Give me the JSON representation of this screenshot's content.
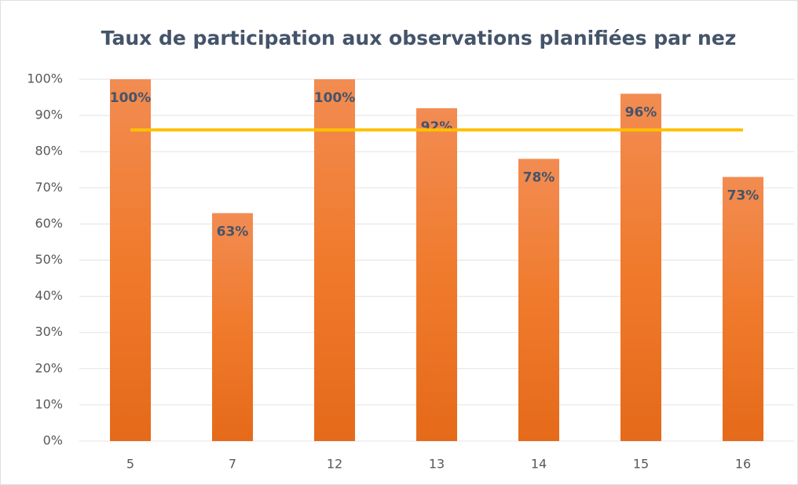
{
  "chart_data": {
    "type": "bar",
    "title": "Taux de participation aux observations planifiées par nez",
    "categories": [
      "5",
      "7",
      "12",
      "13",
      "14",
      "15",
      "16"
    ],
    "values": [
      100,
      63,
      100,
      92,
      78,
      96,
      73
    ],
    "value_labels": [
      "100%",
      "63%",
      "100%",
      "92%",
      "78%",
      "96%",
      "73%"
    ],
    "color": "#f07a2c",
    "reference_line": {
      "value": 86,
      "color": "#ffc000"
    },
    "ylim": [
      0,
      100
    ],
    "yticks": [
      {
        "value": 0,
        "label": "0%"
      },
      {
        "value": 10,
        "label": "10%"
      },
      {
        "value": 20,
        "label": "20%"
      },
      {
        "value": 30,
        "label": "30%"
      },
      {
        "value": 40,
        "label": "40%"
      },
      {
        "value": 50,
        "label": "50%"
      },
      {
        "value": 60,
        "label": "60%"
      },
      {
        "value": 70,
        "label": "70%"
      },
      {
        "value": 80,
        "label": "80%"
      },
      {
        "value": 90,
        "label": "90%"
      },
      {
        "value": 100,
        "label": "100%"
      }
    ],
    "grid": true
  }
}
